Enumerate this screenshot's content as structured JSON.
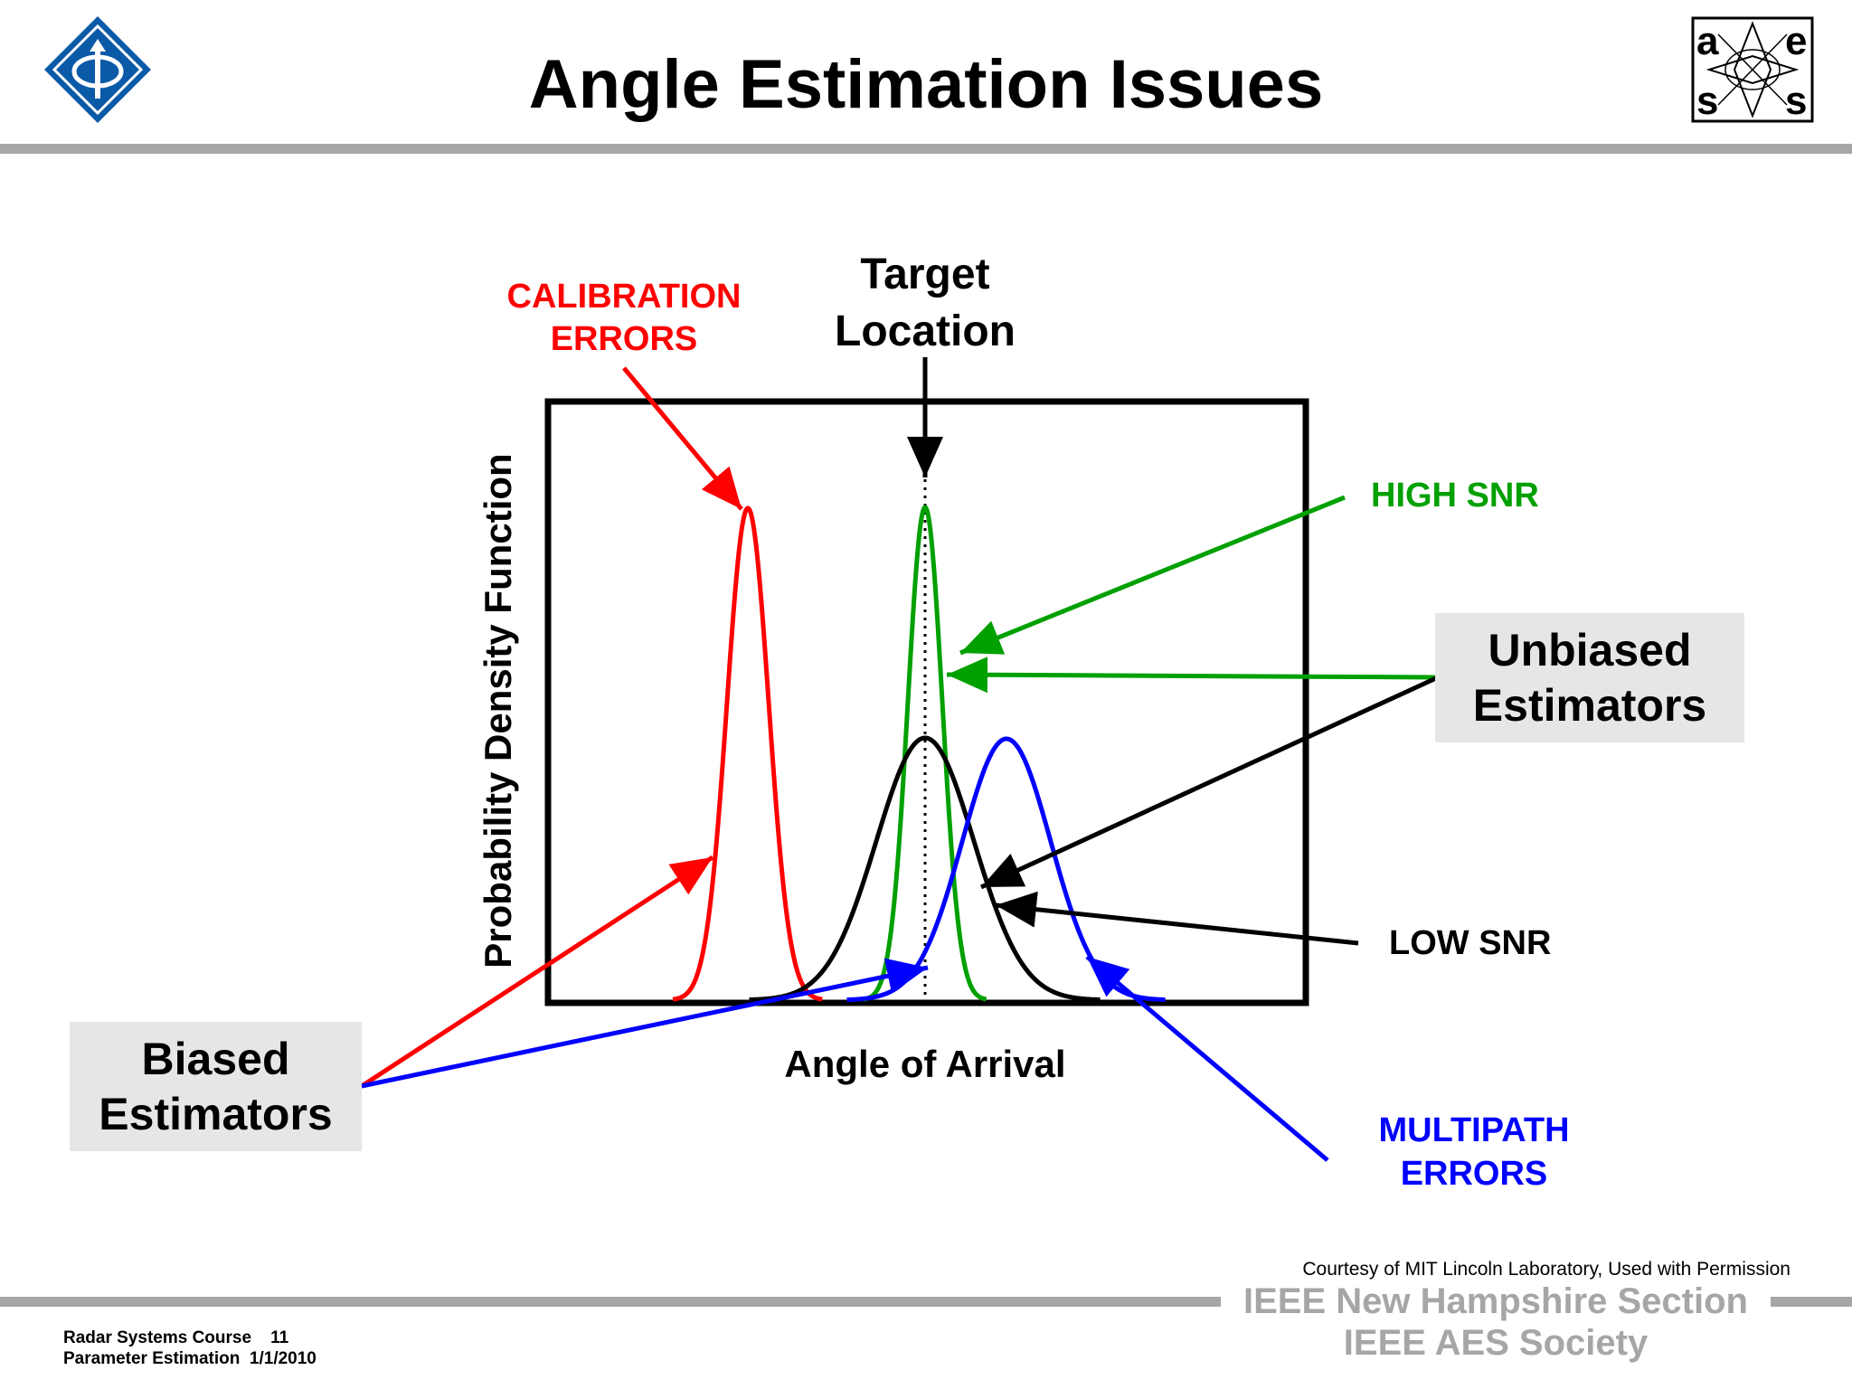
{
  "title": "Angle Estimation Issues",
  "labels": {
    "calibration_line1": "CALIBRATION",
    "calibration_line2": "ERRORS",
    "target_line1": "Target",
    "target_line2": "Location",
    "high_snr": "HIGH SNR",
    "unbiased_line1": "Unbiased",
    "unbiased_line2": "Estimators",
    "low_snr": "LOW SNR",
    "multipath_line1": "MULTIPATH",
    "multipath_line2": "ERRORS",
    "biased_line1": "Biased",
    "biased_line2": "Estimators",
    "xaxis": "Angle of Arrival",
    "yaxis": "Probability Density Function"
  },
  "logos": {
    "left": "ieee-diamond-logo",
    "right": "aes-society-logo",
    "right_letters": [
      "a",
      "e",
      "s",
      "s"
    ]
  },
  "footer": {
    "course_line1": "Radar Systems Course    11",
    "course_line2": "Parameter Estimation  1/1/2010",
    "courtesy": "Courtesy of MIT Lincoln Laboratory, Used with Permission",
    "section": "IEEE New Hampshire Section",
    "society": "IEEE AES Society"
  },
  "colors": {
    "calibration": "#ff0000",
    "high_snr": "#00a000",
    "low_snr": "#000000",
    "multipath": "#0000ff",
    "ieee_blue": "#0a5aa8",
    "footer_grey": "#a6a6a6"
  }
}
